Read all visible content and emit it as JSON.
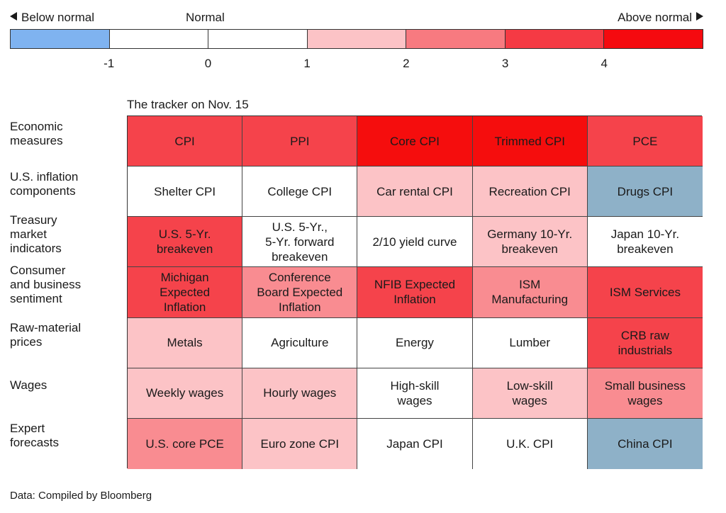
{
  "legend": {
    "below_label": "Below normal",
    "normal_label": "Normal",
    "above_label": "Above normal",
    "ticks": [
      "-1",
      "0",
      "1",
      "2",
      "3",
      "4"
    ],
    "segment_colors": [
      "#7fb3f0",
      "#ffffff",
      "#ffffff",
      "#fcc3c6",
      "#f77a80",
      "#f53a44",
      "#f50a0f"
    ]
  },
  "subtitle": "The tracker on Nov. 15",
  "footer": "Data: Compiled by Bloomberg",
  "colors": {
    "lightpink": "#fcc3c6",
    "pink": "#f98c91",
    "red": "#f5434b",
    "deepred": "#f50d0d",
    "white": "#ffffff",
    "bluegray": "#8eb1c8"
  },
  "chart_data": {
    "type": "heatmap",
    "title": "The tracker on Nov. 15",
    "legend": [
      "Below normal",
      "Normal",
      "Above normal"
    ],
    "scale": [
      -1,
      0,
      1,
      2,
      3,
      4
    ],
    "rows": [
      {
        "label": [
          "Economic",
          "measures"
        ],
        "cells": [
          {
            "name": "CPI",
            "level": "red"
          },
          {
            "name": "PPI",
            "level": "red"
          },
          {
            "name": "Core CPI",
            "level": "deepred"
          },
          {
            "name": "Trimmed CPI",
            "level": "deepred"
          },
          {
            "name": "PCE",
            "level": "red"
          }
        ]
      },
      {
        "label": [
          "U.S. inflation",
          "components"
        ],
        "cells": [
          {
            "name": "Shelter CPI",
            "level": "white"
          },
          {
            "name": "College CPI",
            "level": "white"
          },
          {
            "name": "Car rental CPI",
            "level": "lightpink"
          },
          {
            "name": "Recreation CPI",
            "level": "lightpink"
          },
          {
            "name": "Drugs CPI",
            "level": "bluegray"
          }
        ]
      },
      {
        "label": [
          "Treasury",
          "market",
          "indicators"
        ],
        "cells": [
          {
            "name": "U.S. 5-Yr.\nbreakeven",
            "level": "red"
          },
          {
            "name": "U.S. 5-Yr.,\n5-Yr. forward\nbreakeven",
            "level": "white"
          },
          {
            "name": "2/10 yield curve",
            "level": "white"
          },
          {
            "name": "Germany 10-Yr.\nbreakeven",
            "level": "lightpink"
          },
          {
            "name": "Japan 10-Yr.\nbreakeven",
            "level": "white"
          }
        ]
      },
      {
        "label": [
          "Consumer",
          "and business",
          "sentiment"
        ],
        "cells": [
          {
            "name": "Michigan\nExpected\nInflation",
            "level": "red"
          },
          {
            "name": "Conference\nBoard Expected\nInflation",
            "level": "pink"
          },
          {
            "name": "NFIB Expected\nInflation",
            "level": "red"
          },
          {
            "name": "ISM\nManufacturing",
            "level": "pink"
          },
          {
            "name": "ISM Services",
            "level": "red"
          }
        ]
      },
      {
        "label": [
          "Raw-material",
          "prices"
        ],
        "cells": [
          {
            "name": "Metals",
            "level": "lightpink"
          },
          {
            "name": "Agriculture",
            "level": "white"
          },
          {
            "name": "Energy",
            "level": "white"
          },
          {
            "name": "Lumber",
            "level": "white"
          },
          {
            "name": "CRB raw\nindustrials",
            "level": "red"
          }
        ]
      },
      {
        "label": [
          "Wages"
        ],
        "cells": [
          {
            "name": "Weekly wages",
            "level": "lightpink"
          },
          {
            "name": "Hourly wages",
            "level": "lightpink"
          },
          {
            "name": "High-skill\nwages",
            "level": "white"
          },
          {
            "name": "Low-skill\nwages",
            "level": "lightpink"
          },
          {
            "name": "Small business\nwages",
            "level": "pink"
          }
        ]
      },
      {
        "label": [
          "Expert",
          "forecasts"
        ],
        "cells": [
          {
            "name": "U.S. core PCE",
            "level": "pink"
          },
          {
            "name": "Euro zone CPI",
            "level": "lightpink"
          },
          {
            "name": "Japan CPI",
            "level": "white"
          },
          {
            "name": "U.K. CPI",
            "level": "white"
          },
          {
            "name": "China CPI",
            "level": "bluegray"
          }
        ]
      }
    ]
  }
}
